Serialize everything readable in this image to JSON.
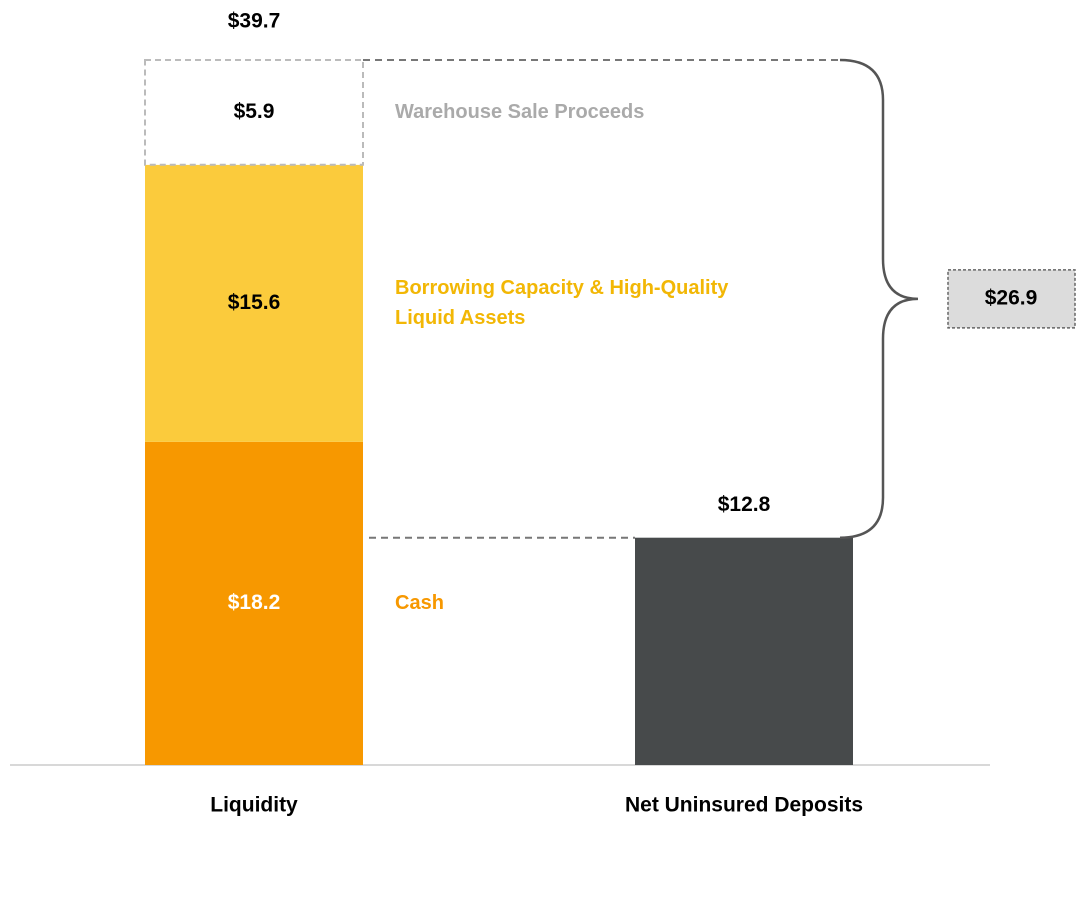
{
  "chart_data": {
    "type": "stacked_bar",
    "categories": [
      "Liquidity",
      "Net Uninsured Deposits"
    ],
    "series": [
      {
        "name": "Cash",
        "color": "#f79800",
        "text_color": "#ffffff",
        "name_color": "#f79800",
        "values": [
          18.2,
          null
        ],
        "value_labels": [
          "$18.2",
          null
        ]
      },
      {
        "name": "Borrowing Capacity & High-Quality Liquid Assets",
        "color": "#fbcb3c",
        "text_color": "#000000",
        "name_color": "#f2b705",
        "values": [
          15.6,
          null
        ],
        "value_labels": [
          "$15.6",
          null
        ]
      },
      {
        "name": "Warehouse Sale Proceeds",
        "color": "#ffffff",
        "outline": "dashed",
        "text_color": "#000000",
        "name_color": "#aaaaaa",
        "values": [
          5.9,
          null
        ],
        "value_labels": [
          "$5.9",
          null
        ]
      },
      {
        "color": "#474a4b",
        "values": [
          null,
          12.8
        ],
        "value_labels": [
          null,
          "$12.8"
        ]
      }
    ],
    "totals": {
      "values": [
        39.7,
        null
      ],
      "value_labels": [
        "$39.7",
        null
      ]
    },
    "difference": {
      "value": 26.9,
      "label": "$26.9"
    }
  }
}
